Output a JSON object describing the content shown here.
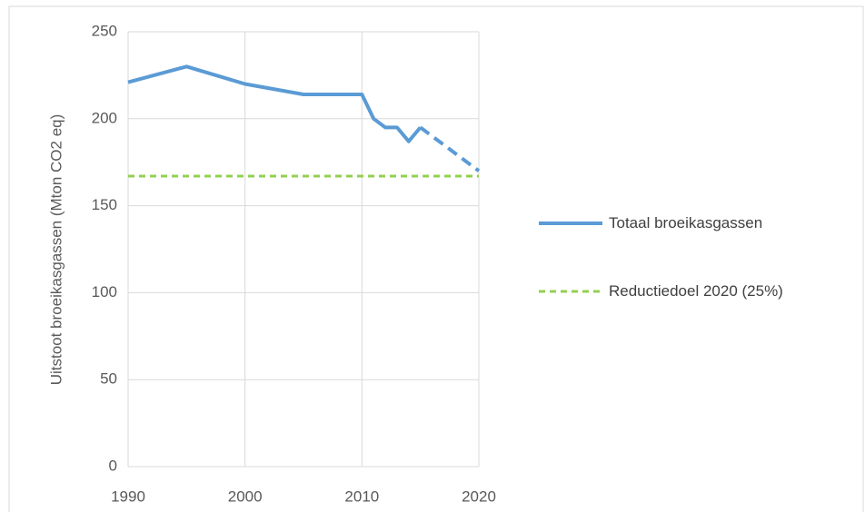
{
  "chart_data": {
    "type": "line",
    "ylabel": "Uitstoot broeikasgassen (Mton CO2 eq)",
    "x": [
      1990,
      1995,
      2000,
      2005,
      2010,
      2011,
      2012,
      2013,
      2014,
      2015,
      2020
    ],
    "series": [
      {
        "name": "Totaal broeikasgassen",
        "color": "#5b9bd5",
        "dashed": false,
        "values": [
          221,
          230,
          220,
          214,
          214,
          200,
          195,
          195,
          187,
          195,
          null
        ]
      },
      {
        "color": "#5b9bd5",
        "dashed": true,
        "values": [
          null,
          null,
          null,
          null,
          null,
          null,
          null,
          null,
          null,
          195,
          170
        ]
      },
      {
        "name": "Reductiedoel 2020 (25%)",
        "color": "#92d050",
        "dashed": true,
        "values": [
          167,
          167,
          167,
          167,
          167,
          167,
          167,
          167,
          167,
          167,
          167
        ]
      }
    ],
    "xlim": [
      1990,
      2020
    ],
    "xticks": [
      1990,
      2000,
      2010,
      2020
    ],
    "ylim": [
      0,
      250
    ],
    "yticks": [
      0,
      50,
      100,
      150,
      200,
      250
    ],
    "grid": true,
    "legend": "right"
  }
}
